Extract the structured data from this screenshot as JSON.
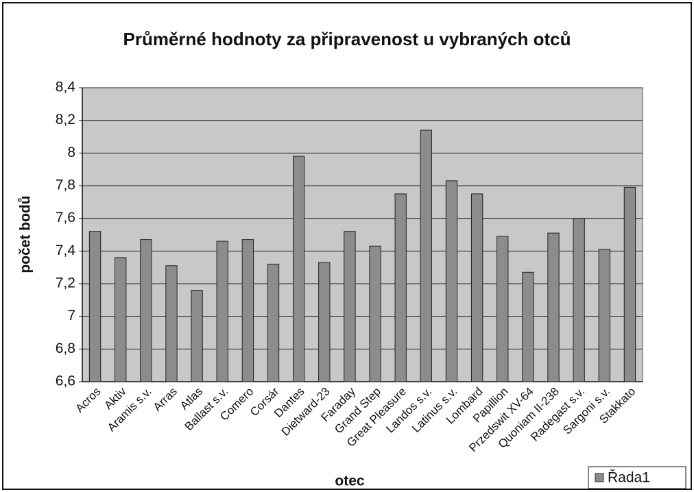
{
  "chart_data": {
    "type": "bar",
    "title": "Průměrné hodnoty za připravenost u vybraných otců",
    "x_label": "otec",
    "y_label": "počet bodů",
    "categories": [
      "Acros",
      "Aktiv",
      "Aramis s.v.",
      "Arras",
      "Atlas",
      "Ballast s.v.",
      "Comero",
      "Corsár",
      "Dantes",
      "Dietward-23",
      "Faraday",
      "Grand Step",
      "Great Pleasure",
      "Landos s.v.",
      "Latinus s.v.",
      "Lombard",
      "Papillion",
      "Przedswit XV-64",
      "Quoniam II-238",
      "Radegast s.v.",
      "Sargoni s.v.",
      "Stakkato"
    ],
    "series": [
      {
        "name": "Řada1",
        "color": "#8c8c8c",
        "values": [
          7.52,
          7.36,
          7.47,
          7.31,
          7.16,
          7.46,
          7.47,
          7.32,
          7.98,
          7.33,
          7.52,
          7.43,
          7.75,
          8.14,
          7.83,
          7.75,
          7.49,
          7.27,
          7.51,
          7.6,
          7.41,
          7.79
        ]
      }
    ],
    "ylim": [
      6.6,
      8.4
    ],
    "yticks": [
      {
        "value": 6.6,
        "label": "6,6"
      },
      {
        "value": 6.8,
        "label": "6,8"
      },
      7,
      {
        "value": 7.2,
        "label": "7,2"
      },
      {
        "value": 7.4,
        "label": "7,4"
      },
      {
        "value": 7.6,
        "label": "7,6"
      },
      {
        "value": 7.8,
        "label": "7,8"
      },
      8,
      {
        "value": 8.2,
        "label": "8,2"
      },
      {
        "value": 8.4,
        "label": "8,4"
      }
    ],
    "grid": true,
    "legend": "bottom-right",
    "plot_background": "#c8c8c8"
  }
}
